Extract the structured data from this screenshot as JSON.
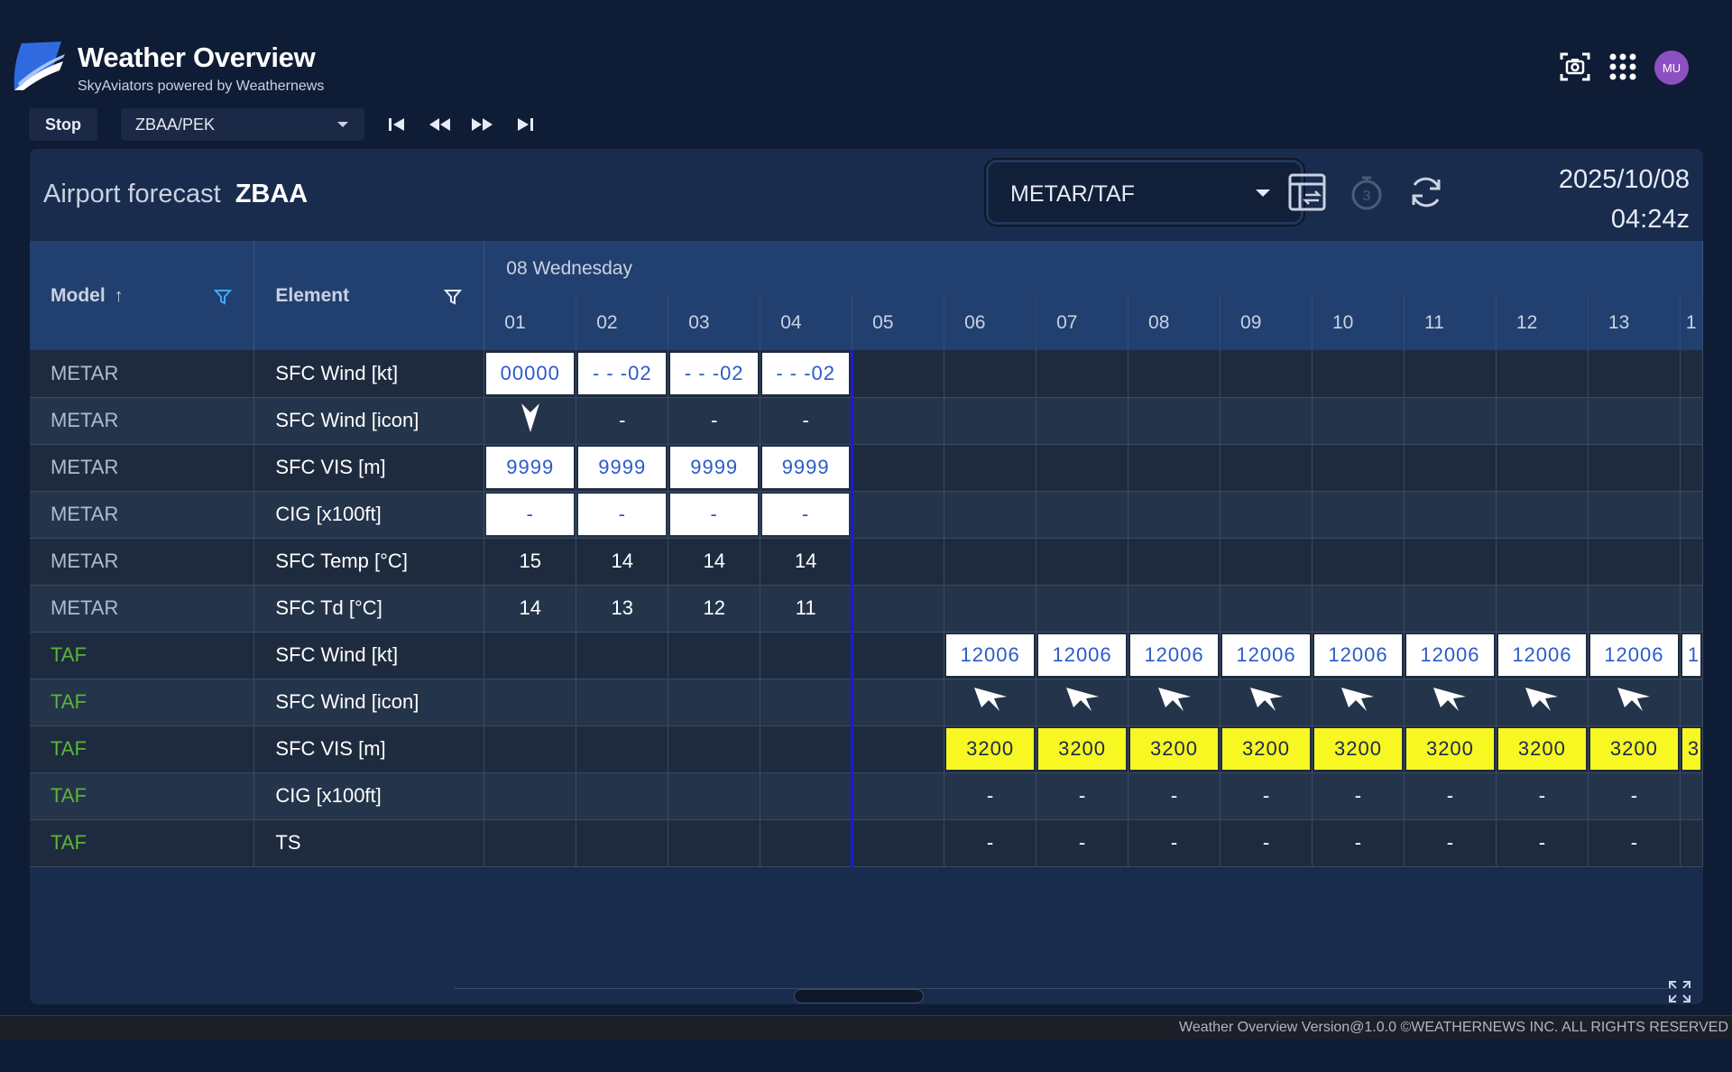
{
  "app": {
    "title": "Weather Overview",
    "subtitle": "SkyAviators powered by Weathernews",
    "avatar": "MU"
  },
  "controls": {
    "stop_label": "Stop",
    "airport_value": "ZBAA/PEK"
  },
  "panel": {
    "title_prefix": "Airport forecast",
    "airport_code": "ZBAA",
    "product_value": "METAR/TAF",
    "date": "2025/10/08",
    "time": "04:24z"
  },
  "table": {
    "col_model": "Model",
    "col_element": "Element",
    "day_label": "08 Wednesday",
    "hours": [
      "01",
      "02",
      "03",
      "04",
      "05",
      "06",
      "07",
      "08",
      "09",
      "10",
      "11",
      "12",
      "13",
      "1"
    ],
    "rows": [
      {
        "model": "METAR",
        "element": "SFC Wind [kt]",
        "cells": [
          "00000",
          "- - -02",
          "- - -02",
          "- - -02",
          "",
          "",
          "",
          "",
          "",
          "",
          "",
          "",
          "",
          ""
        ]
      },
      {
        "model": "METAR",
        "element": "SFC Wind [icon]",
        "cells": [
          "",
          "-",
          "-",
          "-",
          "",
          "",
          "",
          "",
          "",
          "",
          "",
          "",
          "",
          ""
        ]
      },
      {
        "model": "METAR",
        "element": "SFC VIS [m]",
        "cells": [
          "9999",
          "9999",
          "9999",
          "9999",
          "",
          "",
          "",
          "",
          "",
          "",
          "",
          "",
          "",
          ""
        ]
      },
      {
        "model": "METAR",
        "element": "CIG [x100ft]",
        "cells": [
          "-",
          "-",
          "-",
          "-",
          "",
          "",
          "",
          "",
          "",
          "",
          "",
          "",
          "",
          ""
        ]
      },
      {
        "model": "METAR",
        "element": "SFC Temp [°C]",
        "cells": [
          "15",
          "14",
          "14",
          "14",
          "",
          "",
          "",
          "",
          "",
          "",
          "",
          "",
          "",
          ""
        ]
      },
      {
        "model": "METAR",
        "element": "SFC Td [°C]",
        "cells": [
          "14",
          "13",
          "12",
          "11",
          "",
          "",
          "",
          "",
          "",
          "",
          "",
          "",
          "",
          ""
        ]
      },
      {
        "model": "TAF",
        "element": "SFC Wind [kt]",
        "cells": [
          "",
          "",
          "",
          "",
          "",
          "12006",
          "12006",
          "12006",
          "12006",
          "12006",
          "12006",
          "12006",
          "12006",
          "1"
        ]
      },
      {
        "model": "TAF",
        "element": "SFC Wind [icon]",
        "cells": [
          "",
          "",
          "",
          "",
          "",
          "",
          "",
          "",
          "",
          "",
          "",
          "",
          "",
          ""
        ]
      },
      {
        "model": "TAF",
        "element": "SFC VIS [m]",
        "cells": [
          "",
          "",
          "",
          "",
          "",
          "3200",
          "3200",
          "3200",
          "3200",
          "3200",
          "3200",
          "3200",
          "3200",
          "3"
        ]
      },
      {
        "model": "TAF",
        "element": "CIG [x100ft]",
        "cells": [
          "",
          "",
          "",
          "",
          "",
          "-",
          "-",
          "-",
          "-",
          "-",
          "-",
          "-",
          "-",
          ""
        ]
      },
      {
        "model": "TAF",
        "element": "TS",
        "cells": [
          "",
          "",
          "",
          "",
          "",
          "-",
          "-",
          "-",
          "-",
          "-",
          "-",
          "-",
          "-",
          ""
        ]
      }
    ]
  },
  "footer": {
    "text": "Weather Overview  Version@1.0.0  ©WEATHERNEWS INC. ALL RIGHTS RESERVED"
  },
  "colors": {
    "background": "#0f1c35",
    "panel": "#1a2c4d",
    "header": "#22406f",
    "taf_model": "#5ab535",
    "metar_box": "#ffffff",
    "taf_vis_box": "#f7f722",
    "now_line": "#1b1bd6"
  }
}
